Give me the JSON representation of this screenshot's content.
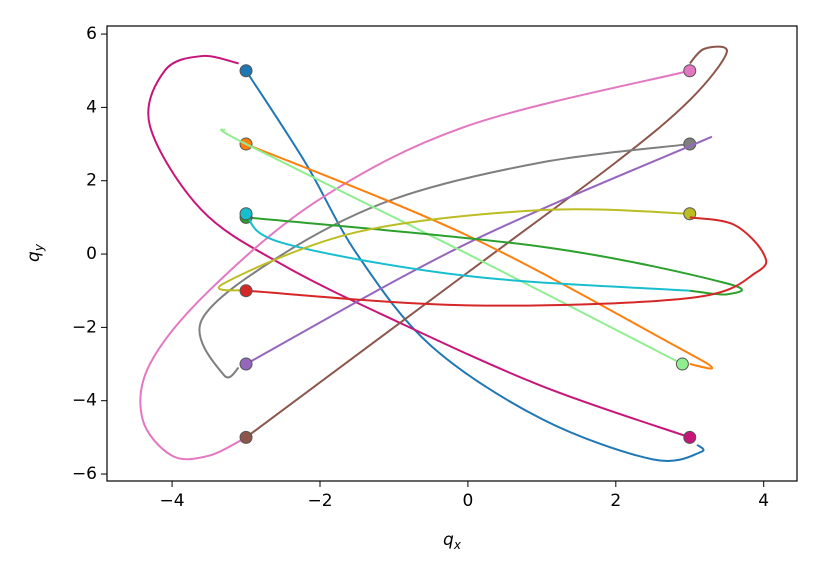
{
  "chart_data": {
    "type": "line",
    "xlabel": {
      "base": "q",
      "sub": "x"
    },
    "ylabel": {
      "base": "q",
      "sub": "y"
    },
    "xlim": [
      -4.88,
      4.45
    ],
    "ylim": [
      -6.19,
      6.22
    ],
    "xticks": [
      {
        "value": -4,
        "label": "−4"
      },
      {
        "value": -2,
        "label": "−2"
      },
      0,
      2,
      4
    ],
    "yticks": [
      {
        "value": -6,
        "label": "−6"
      },
      {
        "value": -4,
        "label": "−4"
      },
      {
        "value": -2,
        "label": "−2"
      },
      0,
      2,
      4,
      6
    ],
    "series": [
      {
        "color": "#1f77b4",
        "x": [
          -3,
          -2.2,
          -1.5,
          -0.5,
          1,
          2.5,
          3.15,
          3.1
        ],
        "values": [
          5,
          2.5,
          0,
          -2.5,
          -4.5,
          -5.6,
          -5.4,
          -5.2
        ]
      },
      {
        "color": "#c7157a",
        "x": [
          3,
          1,
          -1,
          -2.5,
          -3.6,
          -4.3,
          -4.1,
          -3.6,
          -3.1
        ],
        "values": [
          -5,
          -3.6,
          -1.8,
          -0.3,
          1.2,
          3.5,
          5,
          5.4,
          5.2
        ]
      },
      {
        "color": "#e377c2",
        "x": [
          3,
          0,
          -2,
          -3.5,
          -4.3,
          -4.4,
          -4,
          -3.5,
          -3
        ],
        "values": [
          5,
          3.5,
          1.5,
          -1,
          -3,
          -4.5,
          -5.5,
          -5.5,
          -5
        ]
      },
      {
        "color": "#8c564b",
        "x": [
          -3,
          0,
          2,
          3,
          3.5,
          3.2,
          3
        ],
        "values": [
          -5,
          -0.5,
          2.5,
          4.2,
          5.5,
          5.6,
          5.2
        ]
      },
      {
        "color": "#7f7f7f",
        "x": [
          3,
          1,
          -1,
          -2.5,
          -3.6,
          -3.3,
          -3.1
        ],
        "values": [
          3,
          2.5,
          1.5,
          0,
          -1.8,
          -3.3,
          -3.1
        ]
      },
      {
        "color": "#9467bd",
        "x": [
          -3,
          0,
          3.3
        ],
        "values": [
          -3,
          0.3,
          3.2
        ]
      },
      {
        "color": "#ff7f0e",
        "x": [
          -3,
          0,
          2.8,
          3.3,
          3
        ],
        "values": [
          3,
          0.5,
          -2.5,
          -3.1,
          -3
        ]
      },
      {
        "color": "#90ee90",
        "x": [
          2.9,
          0,
          -3,
          -3.3
        ],
        "values": [
          -3,
          0,
          3,
          3.4
        ]
      },
      {
        "color": "#2ca02c",
        "x": [
          -3,
          1,
          3.5,
          3.5,
          3
        ],
        "values": [
          1,
          0.2,
          -0.8,
          -1.1,
          -1
        ]
      },
      {
        "color": "#17becf",
        "x": [
          -3,
          -2.5,
          0,
          3
        ],
        "values": [
          1.1,
          0.3,
          -0.6,
          -1
        ]
      },
      {
        "color": "#bcbd22",
        "x": [
          3,
          1,
          -1.5,
          -3.3,
          -3
        ],
        "values": [
          1.1,
          1.2,
          0.6,
          -0.8,
          -1
        ]
      },
      {
        "color": "#d62728",
        "x": [
          -3,
          0,
          3,
          3.9,
          4,
          3.6,
          3
        ],
        "values": [
          -1,
          -1.4,
          -1.2,
          -0.5,
          0,
          0.8,
          1
        ]
      }
    ]
  }
}
